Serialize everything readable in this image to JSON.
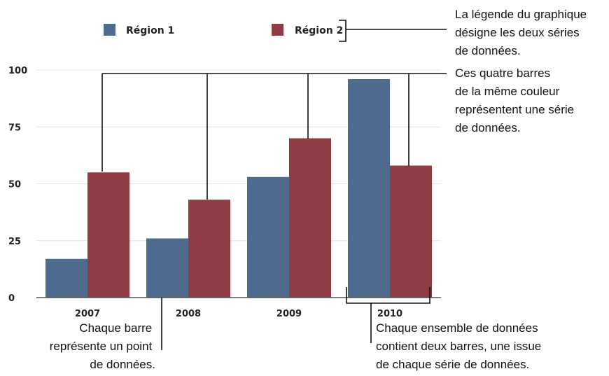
{
  "chart_data": {
    "type": "bar",
    "categories": [
      "2007",
      "2008",
      "2009",
      "2010"
    ],
    "series": [
      {
        "name": "Région 1",
        "values": [
          17,
          26,
          53,
          96
        ]
      },
      {
        "name": "Région 2",
        "values": [
          55,
          43,
          70,
          58
        ]
      }
    ],
    "ylim": [
      0,
      100
    ],
    "yticks": [
      "0",
      "25",
      "50",
      "75",
      "100"
    ],
    "grid": true,
    "legend_position": "top",
    "colors": {
      "series1": "#4f6a8f",
      "series2": "#8f3d45",
      "grid": "#e4e4e4",
      "axis": "#555555"
    }
  },
  "annotations": {
    "legend_note": [
      "La légende du graphique",
      "désigne les deux séries",
      "de données."
    ],
    "series_note": [
      "Ces quatre barres",
      "de la même couleur",
      "représentent une série",
      "de données."
    ],
    "point_note": [
      "Chaque barre",
      "représente un point",
      "de données."
    ],
    "set_note": [
      "Chaque ensemble de données",
      "contient deux barres, une issue",
      "de chaque série de données."
    ]
  }
}
